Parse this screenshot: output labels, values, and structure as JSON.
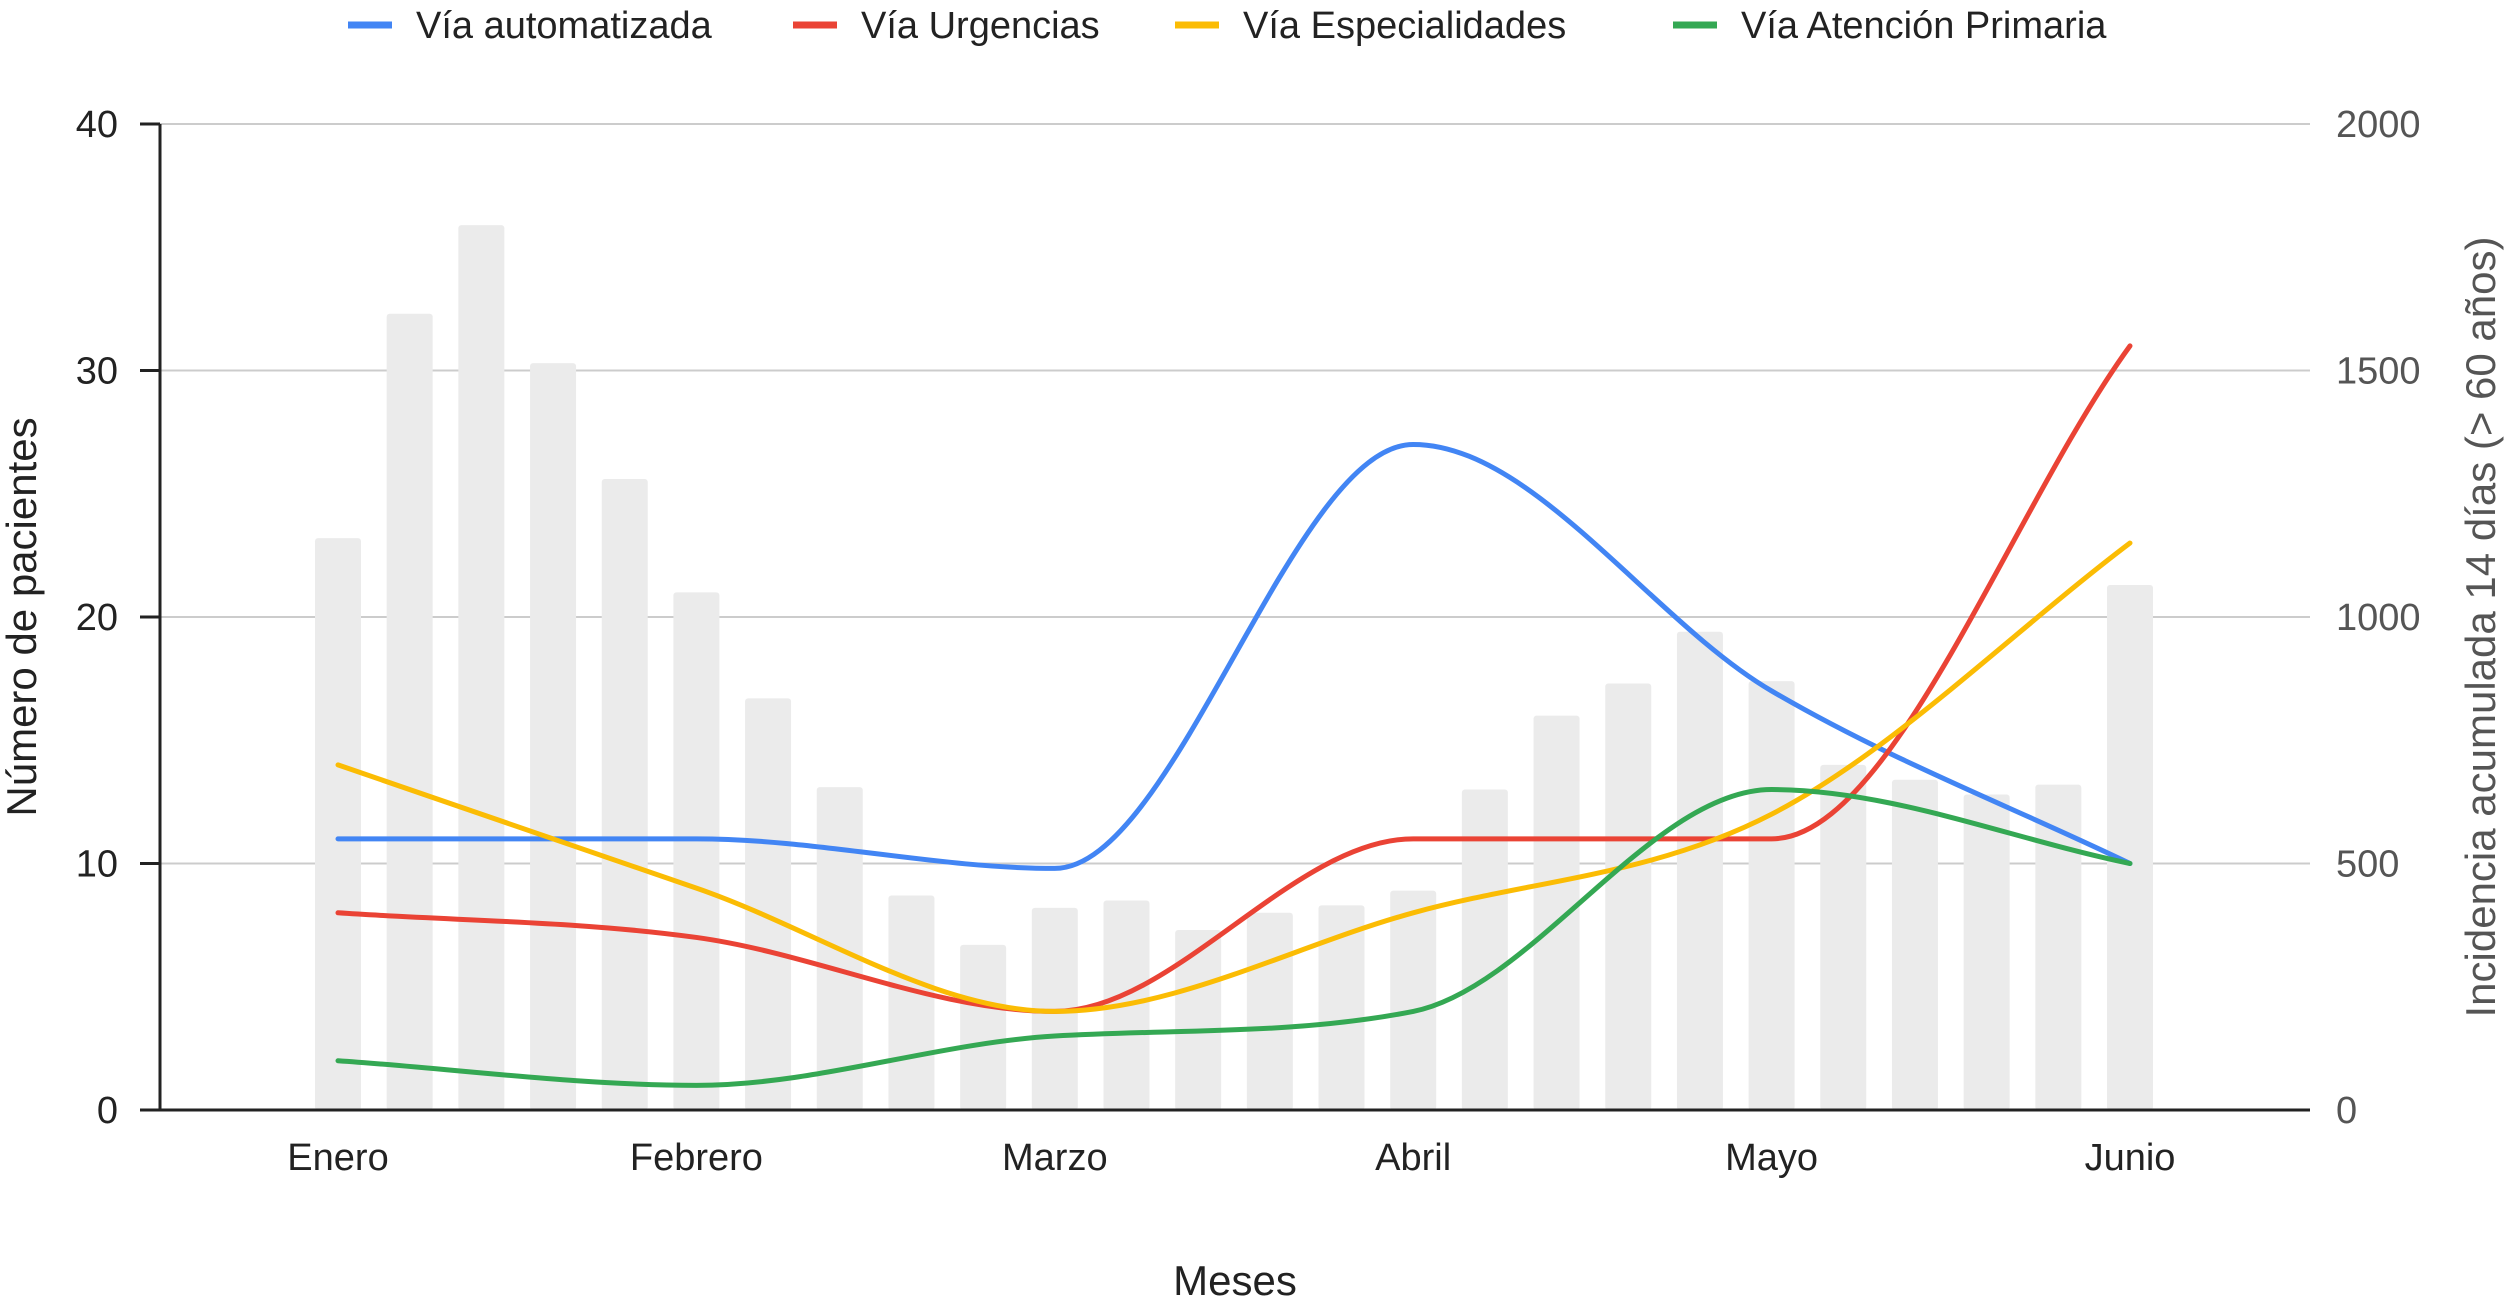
{
  "chart_data": {
    "type": "bar+line",
    "title": "",
    "xlabel": "Meses",
    "ylabel_left": "Número de pacientes",
    "ylabel_right": "Incidencia acumulada 14 días (> 60 años)",
    "ylim_left": [
      0,
      40
    ],
    "ylim_right": [
      0,
      2000
    ],
    "yticks_left": [
      "0",
      "10",
      "20",
      "30",
      "40"
    ],
    "yticks_right": [
      "0",
      "500",
      "1000",
      "1500",
      "2000"
    ],
    "x_tick_labels": [
      "Enero",
      "Febrero",
      "Marzo",
      "Abril",
      "Mayo",
      "Junio"
    ],
    "grid": true,
    "legend_position": "top",
    "line_series": [
      {
        "name": "Vía automatizada",
        "color": "#4285F4",
        "values": [
          11,
          11,
          9.8,
          27,
          17,
          10
        ]
      },
      {
        "name": "Vía Urgencias",
        "color": "#EA4335",
        "values": [
          8,
          7,
          4,
          11,
          11,
          31
        ]
      },
      {
        "name": "Vía Especialidades",
        "color": "#FBBC04",
        "values": [
          14,
          9,
          4,
          8,
          12,
          23
        ]
      },
      {
        "name": "Vía Atención Primaria",
        "color": "#34A853",
        "values": [
          2,
          1,
          3,
          4,
          13,
          10
        ]
      }
    ],
    "bar_series": {
      "axis": "right",
      "color": "#EBEBEB",
      "values": [
        1160,
        1615,
        1795,
        1515,
        1280,
        1050,
        835,
        655,
        435,
        335,
        410,
        425,
        365,
        400,
        415,
        445,
        650,
        800,
        865,
        970,
        870,
        700,
        670,
        640,
        660,
        1065
      ]
    }
  }
}
